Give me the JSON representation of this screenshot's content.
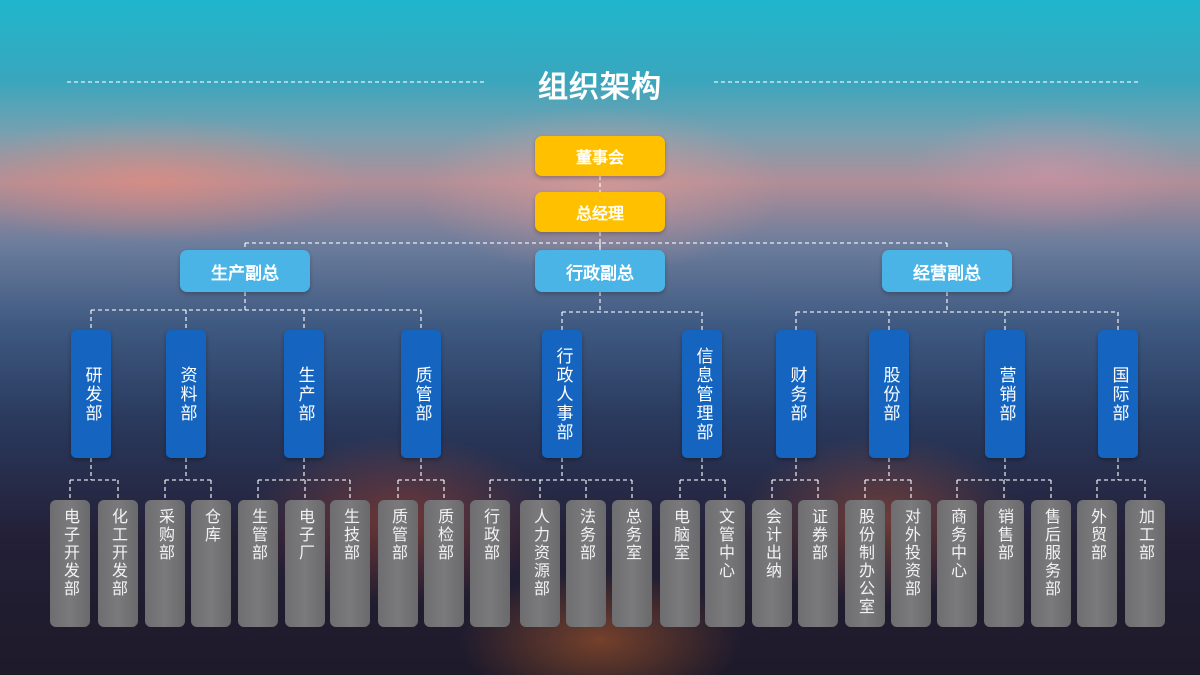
{
  "title": "组织架构",
  "colors": {
    "top": "#ffc000",
    "vp": "#4bb4e6",
    "dept": "#1565c0",
    "unit": "#737375",
    "line": "#ffffff"
  },
  "top": [
    {
      "label": "董事会"
    },
    {
      "label": "总经理"
    }
  ],
  "vps": [
    {
      "label": "生产副总",
      "departments": [
        {
          "label": "研发部",
          "units": [
            "电子开发部",
            "化工开发部"
          ]
        },
        {
          "label": "资料部",
          "units": [
            "采购部",
            "仓库"
          ]
        },
        {
          "label": "生产部",
          "units": [
            "生管部",
            "电子厂",
            "生技部"
          ]
        },
        {
          "label": "质管部",
          "units": [
            "质管部",
            "质检部"
          ]
        }
      ]
    },
    {
      "label": "行政副总",
      "departments": [
        {
          "label": "行政人事部",
          "units": [
            "行政部",
            "人力资源部",
            "法务部",
            "总务室"
          ]
        },
        {
          "label": "信息管理部",
          "units": [
            "电脑室",
            "文管中心"
          ]
        }
      ]
    },
    {
      "label": "经营副总",
      "departments": [
        {
          "label": "财务部",
          "units": [
            "会计出纳",
            "证券部"
          ]
        },
        {
          "label": "股份部",
          "units": [
            "股份制办公室",
            "对外投资部"
          ]
        },
        {
          "label": "营销部",
          "units": [
            "商务中心",
            "销售部",
            "售后服务部"
          ]
        },
        {
          "label": "国际部",
          "units": [
            "外贸部",
            "加工部"
          ]
        }
      ]
    }
  ]
}
